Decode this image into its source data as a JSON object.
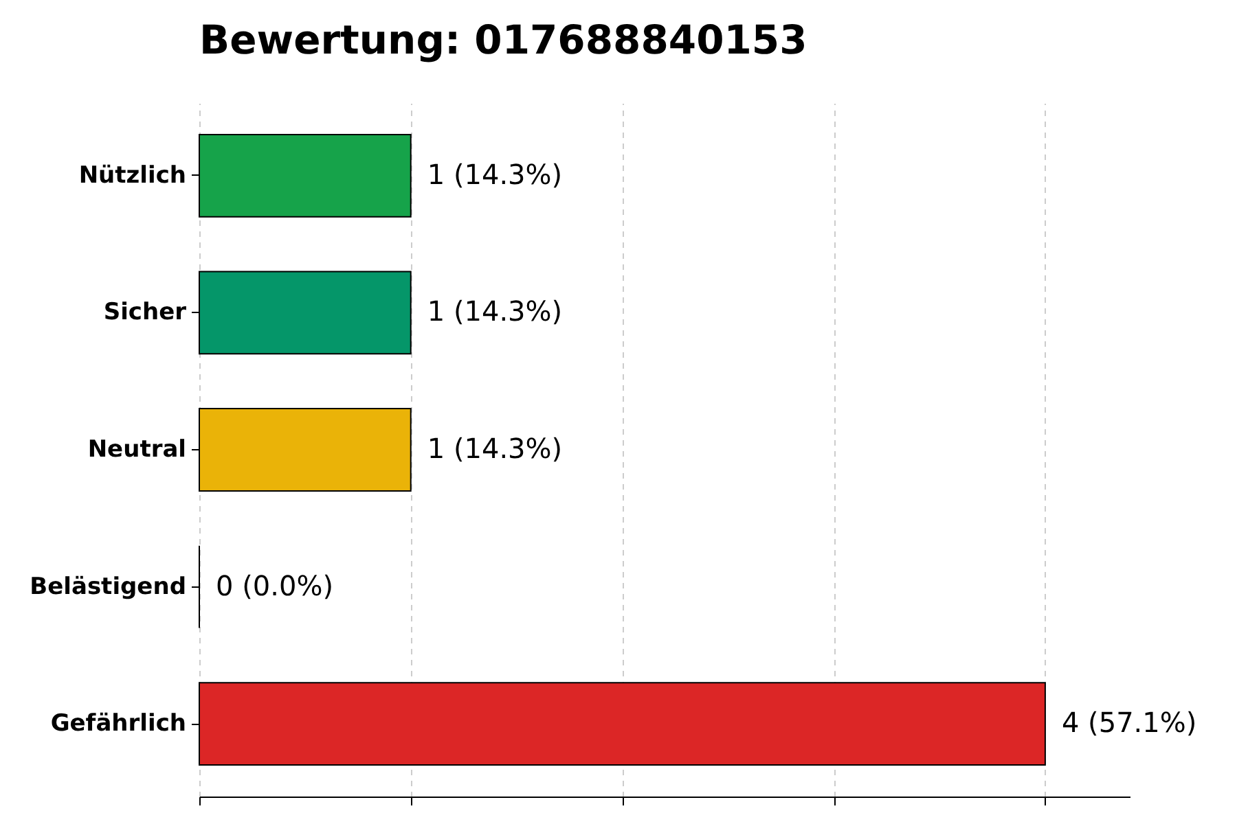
{
  "chart_data": {
    "type": "bar",
    "title": "Bewertung: 017688840153",
    "orientation": "horizontal",
    "categories": [
      "Nützlich",
      "Sicher",
      "Neutral",
      "Belästigend",
      "Gefährlich"
    ],
    "values": [
      1,
      1,
      1,
      0,
      4
    ],
    "colors": [
      "#16a34a",
      "#059669",
      "#eab308",
      "#000000",
      "#dc2626"
    ],
    "value_labels": [
      "1 (14.3%)",
      "1 (14.3%)",
      "1 (14.3%)",
      "0 (0.0%)",
      "4 (57.1%)"
    ],
    "xlim": [
      0,
      4.4
    ],
    "xticks": [
      {
        "value": 0,
        "label": null
      },
      {
        "value": 1,
        "label": null
      },
      {
        "value": 2,
        "label": null
      },
      {
        "value": 3,
        "label": null
      },
      {
        "value": 4,
        "label": null
      }
    ],
    "tick_labels": "y",
    "grid": "x"
  }
}
